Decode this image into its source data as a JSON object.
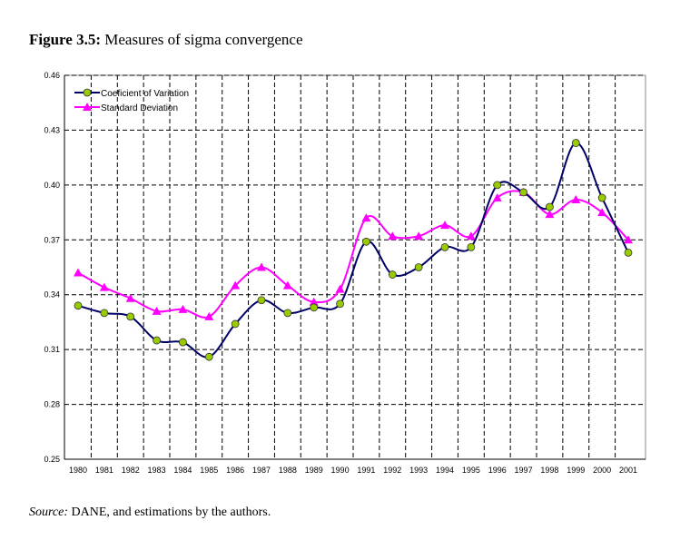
{
  "title": {
    "label": "Figure 3.5:",
    "text": "Measures of sigma convergence"
  },
  "source": {
    "label": "Source:",
    "text": "DANE, and estimations by the authors."
  },
  "chart_data": {
    "type": "line",
    "title": "Measures of sigma convergence",
    "xlabel": "",
    "ylabel": "",
    "ylim": [
      0.25,
      0.46
    ],
    "yticks": [
      "0.25",
      "0.28",
      "0.31",
      "0.34",
      "0.37",
      "0.40",
      "0.43",
      "0.46"
    ],
    "categories": [
      "1980",
      "1981",
      "1982",
      "1983",
      "1984",
      "1985",
      "1986",
      "1987",
      "1988",
      "1989",
      "1990",
      "1991",
      "1992",
      "1993",
      "1994",
      "1995",
      "1996",
      "1997",
      "1998",
      "1999",
      "2000",
      "2001"
    ],
    "grid": true,
    "legend_position": "top-left",
    "series": [
      {
        "name": "Coeficient of Variation",
        "color": "#000066",
        "marker_color": "#99cc00",
        "values": [
          0.334,
          0.33,
          0.328,
          0.315,
          0.314,
          0.306,
          0.324,
          0.337,
          0.33,
          0.333,
          0.335,
          0.369,
          0.351,
          0.355,
          0.366,
          0.366,
          0.4,
          0.396,
          0.388,
          0.423,
          0.393,
          0.363
        ]
      },
      {
        "name": "Standard Deviation",
        "color": "#ff00ff",
        "marker_color": "#ff00ff",
        "values": [
          0.352,
          0.344,
          0.338,
          0.331,
          0.332,
          0.328,
          0.345,
          0.355,
          0.345,
          0.336,
          0.343,
          0.382,
          0.372,
          0.372,
          0.378,
          0.372,
          0.393,
          0.396,
          0.384,
          0.392,
          0.385,
          0.37
        ]
      }
    ]
  }
}
